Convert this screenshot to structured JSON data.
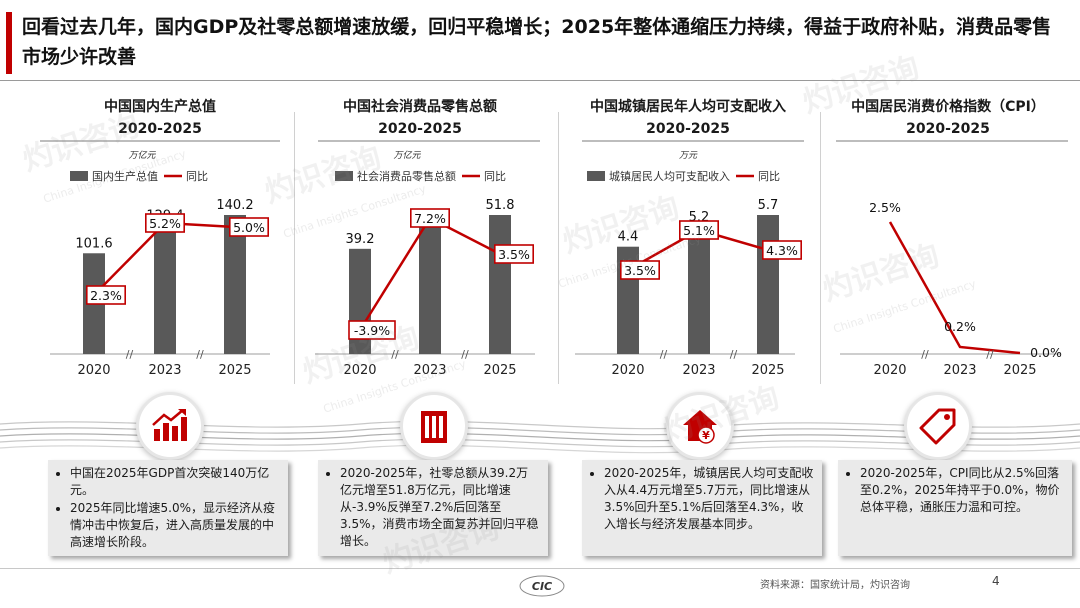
{
  "title": "回看过去几年，国内GDP及社零总额增速放缓，回归平稳增长；2025年整体通缩压力持续，得益于政府补贴，消费品零售市场少许改善",
  "colors": {
    "accent": "#c00000",
    "bar": "#595959",
    "label_border": "#c00000"
  },
  "chart_data": [
    {
      "type": "bar+line",
      "title": "中国国内生产总值",
      "subtitle": "2020-2025",
      "unit": "万亿元",
      "legend": [
        "国内生产总值",
        "同比"
      ],
      "categories": [
        "2020",
        "2023",
        "2025"
      ],
      "bar_values": [
        101.6,
        129.4,
        140.2
      ],
      "bar_labels": [
        "101.6",
        "129.4",
        "140.2"
      ],
      "yoy_values": [
        2.3,
        5.2,
        5.0
      ],
      "yoy_labels": [
        "2.3%",
        "5.2%",
        "5.0%"
      ],
      "axis_break": "//"
    },
    {
      "type": "bar+line",
      "title": "中国社会消费品零售总额",
      "subtitle": "2020-2025",
      "unit": "万亿元",
      "legend": [
        "社会消费品零售总额",
        "同比"
      ],
      "categories": [
        "2020",
        "2023",
        "2025"
      ],
      "bar_values": [
        39.2,
        47.2,
        51.8
      ],
      "bar_labels": [
        "39.2",
        "47.2",
        "51.8"
      ],
      "yoy_values": [
        -3.9,
        7.2,
        3.5
      ],
      "yoy_labels": [
        "-3.9%",
        "7.2%",
        "3.5%"
      ],
      "axis_break": "//"
    },
    {
      "type": "bar+line",
      "title": "中国城镇居民年人均可支配收入",
      "subtitle": "2020-2025",
      "unit": "万元",
      "legend": [
        "城镇居民人均可支配收入",
        "同比"
      ],
      "categories": [
        "2020",
        "2023",
        "2025"
      ],
      "bar_values": [
        4.4,
        5.2,
        5.7
      ],
      "bar_labels": [
        "4.4",
        "5.2",
        "5.7"
      ],
      "yoy_values": [
        3.5,
        5.1,
        4.3
      ],
      "yoy_labels": [
        "3.5%",
        "5.1%",
        "4.3%"
      ],
      "axis_break": "//"
    },
    {
      "type": "line",
      "title": "中国居民消费价格指数（CPI）",
      "subtitle": "2020-2025",
      "categories": [
        "2020",
        "2023",
        "2025"
      ],
      "yoy_values": [
        2.5,
        0.2,
        0.0
      ],
      "yoy_labels": [
        "2.5%",
        "0.2%",
        "0.0%"
      ],
      "axis_break": "//"
    }
  ],
  "icons": [
    "rising-chart-icon",
    "building-icon",
    "house-yuan-icon",
    "price-tag-icon"
  ],
  "notes": [
    [
      "中国在2025年GDP首次突破140万亿元。",
      "2025年同比增速5.0%，显示经济从疫情冲击中恢复后，进入高质量发展的中高速增长阶段。"
    ],
    [
      "2020-2025年，社零总额从39.2万亿元增至51.8万亿元，同比增速从-3.9%反弹至7.2%后回落至3.5%，消费市场全面复苏并回归平稳增长。"
    ],
    [
      "2020-2025年，城镇居民人均可支配收入从4.4万元增至5.7万元，同比增速从3.5%回升至5.1%后回落至4.3%，收入增长与经济发展基本同步。"
    ],
    [
      "2020-2025年，CPI同比从2.5%回落至0.2%，2025年持平于0.0%，物价总体平稳，通胀压力温和可控。"
    ]
  ],
  "footer": {
    "source": "资料来源：国家统计局，灼识咨询",
    "page": "4",
    "logo": "CIC"
  },
  "watermark": {
    "cn": "灼识咨询",
    "en": "China Insights Consultancy",
    "logo": "CIC"
  }
}
